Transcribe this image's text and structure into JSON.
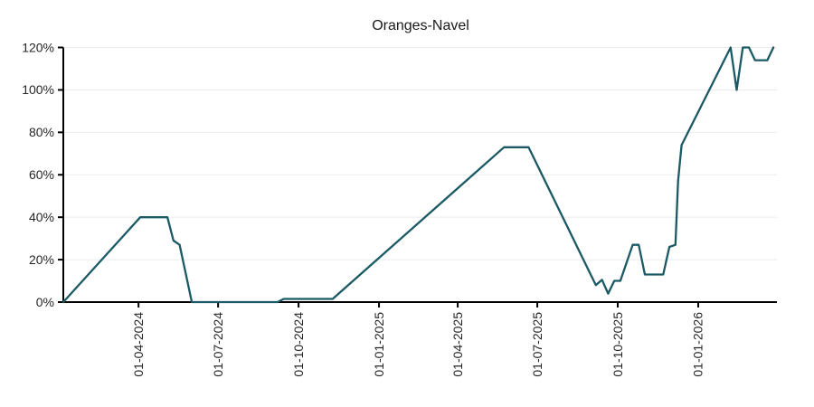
{
  "title": "Oranges-Navel",
  "chart_data": {
    "type": "line",
    "title": "Oranges-Navel",
    "xlabel": "",
    "ylabel": "",
    "legend": "none",
    "grid": "horizontal",
    "grid_color": "#ebebeb",
    "axis_color": "#000000",
    "tick_label_color": "#262626",
    "ylim": [
      0,
      120
    ],
    "y_unit": "%",
    "x_range": [
      "2024-01-06",
      "2026-04-01"
    ],
    "y_ticks": [
      {
        "label": "0%",
        "value": 0
      },
      {
        "label": "20%",
        "value": 20
      },
      {
        "label": "40%",
        "value": 40
      },
      {
        "label": "60%",
        "value": 60
      },
      {
        "label": "80%",
        "value": 80
      },
      {
        "label": "100%",
        "value": 100
      },
      {
        "label": "120%",
        "value": 120
      }
    ],
    "x_ticks": [
      {
        "label": "01-04-2024",
        "date": "2024-04-01"
      },
      {
        "label": "01-07-2024",
        "date": "2024-07-01"
      },
      {
        "label": "01-10-2024",
        "date": "2024-10-01"
      },
      {
        "label": "01-01-2025",
        "date": "2025-01-01"
      },
      {
        "label": "01-04-2025",
        "date": "2025-04-01"
      },
      {
        "label": "01-07-2025",
        "date": "2025-07-01"
      },
      {
        "label": "01-10-2025",
        "date": "2025-10-01"
      },
      {
        "label": "01-01-2026",
        "date": "2026-01-01"
      }
    ],
    "series": [
      {
        "name": "Oranges-Navel",
        "color": "#1b5a64",
        "points": [
          [
            "2024-01-06",
            0
          ],
          [
            "2024-04-03",
            40
          ],
          [
            "2024-05-04",
            40
          ],
          [
            "2024-05-11",
            29
          ],
          [
            "2024-05-18",
            27
          ],
          [
            "2024-06-01",
            0
          ],
          [
            "2024-09-07",
            0
          ],
          [
            "2024-09-14",
            1.5
          ],
          [
            "2024-11-09",
            1.5
          ],
          [
            "2025-05-24",
            73
          ],
          [
            "2025-06-21",
            73
          ],
          [
            "2025-09-06",
            8
          ],
          [
            "2025-09-13",
            10.5
          ],
          [
            "2025-09-20",
            4
          ],
          [
            "2025-09-27",
            10
          ],
          [
            "2025-10-04",
            10
          ],
          [
            "2025-10-18",
            27
          ],
          [
            "2025-10-25",
            27
          ],
          [
            "2025-11-01",
            13
          ],
          [
            "2025-11-22",
            13
          ],
          [
            "2025-11-29",
            26
          ],
          [
            "2025-12-06",
            27
          ],
          [
            "2025-12-09",
            57
          ],
          [
            "2025-12-13",
            74
          ],
          [
            "2026-02-07",
            120
          ],
          [
            "2026-02-14",
            100
          ],
          [
            "2026-02-21",
            120
          ],
          [
            "2026-02-28",
            120
          ],
          [
            "2026-03-07",
            114
          ],
          [
            "2026-03-21",
            114
          ],
          [
            "2026-03-28",
            120
          ]
        ]
      }
    ]
  }
}
